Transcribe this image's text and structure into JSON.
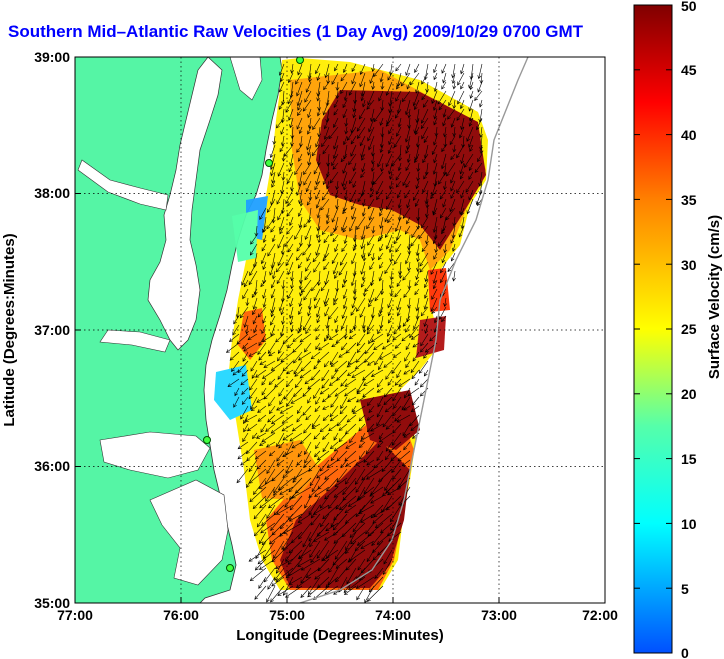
{
  "title": "Southern Mid–Atlantic Raw Velocities (1 Day Avg) 2009/10/29 0700 GMT",
  "map": {
    "x_label": "Longitude (Degrees:Minutes)",
    "y_label": "Latitude (Degrees:Minutes)",
    "x_ticks": [
      "77:00",
      "76:00",
      "75:00",
      "74:00",
      "73:00",
      "72:00"
    ],
    "y_ticks": [
      "39:00",
      "38:00",
      "37:00",
      "36:00",
      "35:00"
    ],
    "lon_range": [
      -77,
      -72
    ],
    "lat_range": [
      35,
      39
    ],
    "grid": "dotted",
    "land_color": "#55f5a5",
    "velocity_field_units": "cm/s"
  },
  "colorbar": {
    "label": "Surface Velocity (cm/s)",
    "ticks": [
      "0",
      "5",
      "10",
      "15",
      "20",
      "25",
      "30",
      "35",
      "40",
      "45",
      "50"
    ],
    "range": [
      0,
      50
    ],
    "colormap": "jet"
  }
}
